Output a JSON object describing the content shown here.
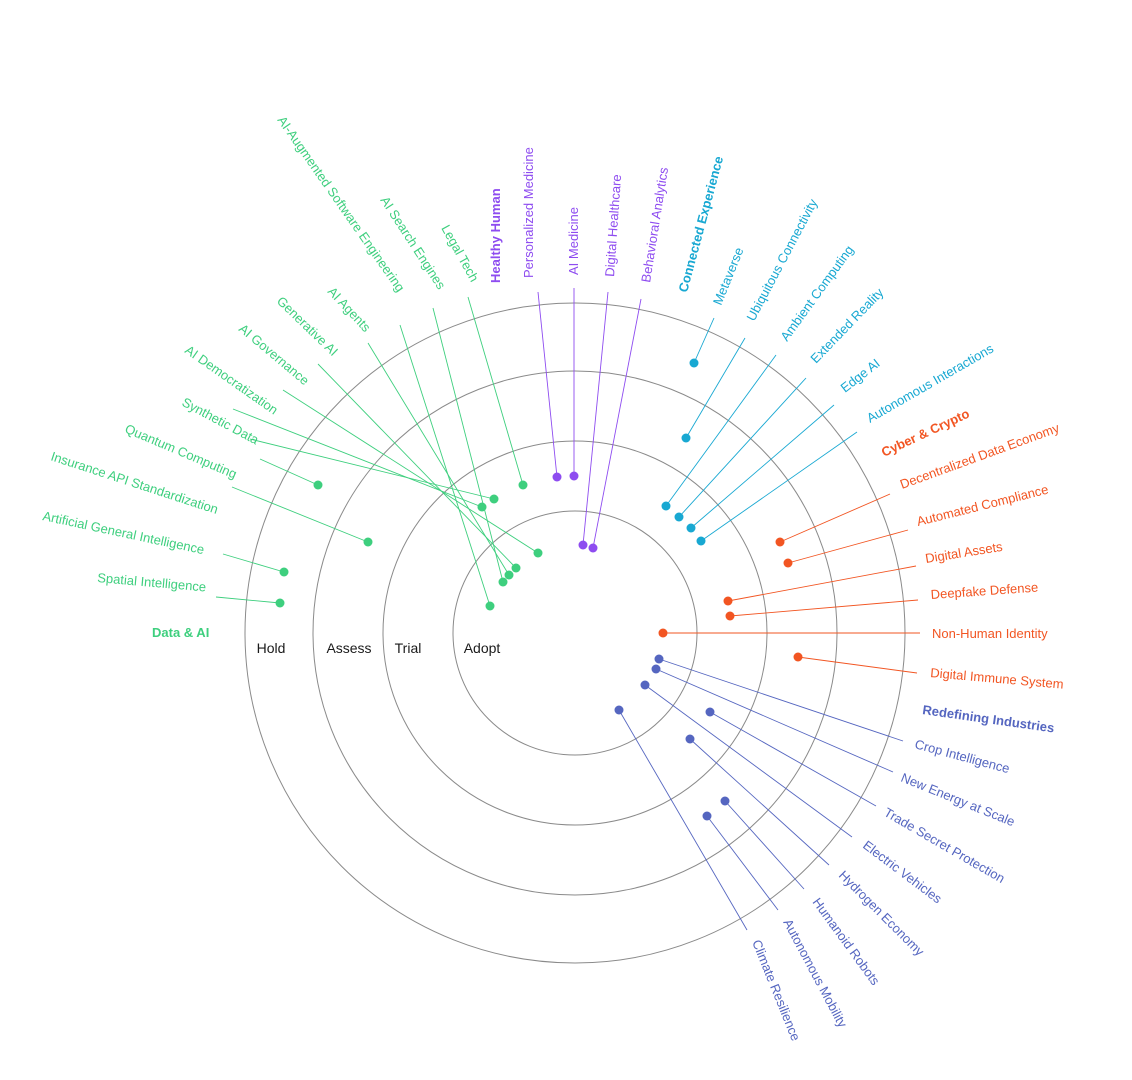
{
  "rings": [
    {
      "id": "adopt",
      "label": "Adopt"
    },
    {
      "id": "trial",
      "label": "Trial"
    },
    {
      "id": "assess",
      "label": "Assess"
    },
    {
      "id": "hold",
      "label": "Hold"
    }
  ],
  "quadrants": [
    {
      "id": "data-ai",
      "label": "Data & AI",
      "color": "#3ecf7e"
    },
    {
      "id": "health",
      "label": "Healthy Human",
      "color": "#8e4cf0"
    },
    {
      "id": "connected",
      "label": "Connected Experience",
      "color": "#18a8d2"
    },
    {
      "id": "cyber",
      "label": "Cyber & Crypto",
      "color": "#f25522"
    },
    {
      "id": "industries",
      "label": "Redefining Industries",
      "color": "#5566c0"
    }
  ],
  "items": [
    {
      "label": "AI-Augmented Software Engineering",
      "quadrant": "data-ai",
      "ring": "adopt"
    },
    {
      "label": "AI Search Engines",
      "quadrant": "data-ai",
      "ring": "trial"
    },
    {
      "label": "Legal Tech",
      "quadrant": "data-ai",
      "ring": "trial"
    },
    {
      "label": "AI Agents",
      "quadrant": "data-ai",
      "ring": "adopt"
    },
    {
      "label": "Generative AI",
      "quadrant": "data-ai",
      "ring": "adopt"
    },
    {
      "label": "AI Governance",
      "quadrant": "data-ai",
      "ring": "adopt"
    },
    {
      "label": "AI Democratization",
      "quadrant": "data-ai",
      "ring": "trial"
    },
    {
      "label": "Synthetic Data",
      "quadrant": "data-ai",
      "ring": "assess"
    },
    {
      "label": "Quantum Computing",
      "quadrant": "data-ai",
      "ring": "assess"
    },
    {
      "label": "Insurance API Standardization",
      "quadrant": "data-ai",
      "ring": "adopt"
    },
    {
      "label": "Artificial General Intelligence",
      "quadrant": "data-ai",
      "ring": "hold"
    },
    {
      "label": "Spatial Intelligence",
      "quadrant": "data-ai",
      "ring": "hold"
    },
    {
      "label": "Personalized Medicine",
      "quadrant": "health",
      "ring": "trial"
    },
    {
      "label": "AI Medicine",
      "quadrant": "health",
      "ring": "trial"
    },
    {
      "label": "Digital Healthcare",
      "quadrant": "health",
      "ring": "adopt"
    },
    {
      "label": "Behavioral Analytics",
      "quadrant": "health",
      "ring": "adopt"
    },
    {
      "label": "Metaverse",
      "quadrant": "connected",
      "ring": "hold"
    },
    {
      "label": "Ubiquitous Connectivity",
      "quadrant": "connected",
      "ring": "assess"
    },
    {
      "label": "Ambient Computing",
      "quadrant": "connected",
      "ring": "trial"
    },
    {
      "label": "Extended Reality",
      "quadrant": "connected",
      "ring": "trial"
    },
    {
      "label": "Edge AI",
      "quadrant": "connected",
      "ring": "trial"
    },
    {
      "label": "Autonomous Interactions",
      "quadrant": "connected",
      "ring": "trial"
    },
    {
      "label": "Decentralized Data Economy",
      "quadrant": "cyber",
      "ring": "assess"
    },
    {
      "label": "Automated Compliance",
      "quadrant": "cyber",
      "ring": "assess"
    },
    {
      "label": "Digital Assets",
      "quadrant": "cyber",
      "ring": "trial"
    },
    {
      "label": "Deepfake Defense",
      "quadrant": "cyber",
      "ring": "trial"
    },
    {
      "label": "Non-Human Identity",
      "quadrant": "cyber",
      "ring": "adopt"
    },
    {
      "label": "Digital Immune System",
      "quadrant": "cyber",
      "ring": "assess"
    },
    {
      "label": "Crop Intelligence",
      "quadrant": "industries",
      "ring": "adopt"
    },
    {
      "label": "New Energy at Scale",
      "quadrant": "industries",
      "ring": "adopt"
    },
    {
      "label": "Trade Secret Protection",
      "quadrant": "industries",
      "ring": "trial"
    },
    {
      "label": "Electric Vehicles",
      "quadrant": "industries",
      "ring": "adopt"
    },
    {
      "label": "Hydrogen Economy",
      "quadrant": "industries",
      "ring": "trial"
    },
    {
      "label": "Humanoid Robots",
      "quadrant": "industries",
      "ring": "assess"
    },
    {
      "label": "Autonomous Mobility",
      "quadrant": "industries",
      "ring": "assess"
    },
    {
      "label": "Climate Resilience",
      "quadrant": "industries",
      "ring": "trial"
    }
  ]
}
